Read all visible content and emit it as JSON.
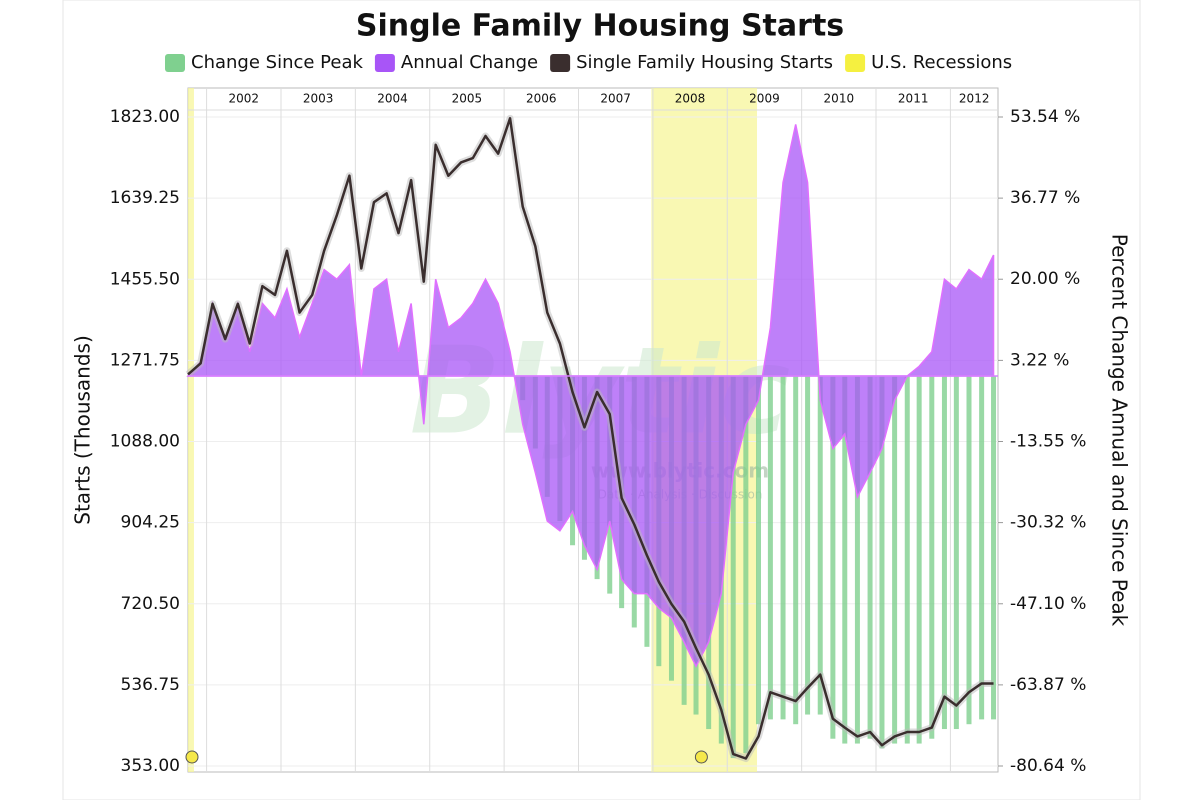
{
  "chart_data": {
    "type": "combo",
    "title": "Single Family Housing Starts",
    "y_label": "Starts (Thousands)",
    "y2_label": "Percent Change Annual and Since Peak",
    "watermark": [
      "Blytic",
      "www.blytic.com",
      "Data · Analysis · Discussion"
    ],
    "x": [
      2001.75,
      2001.92,
      2002.08,
      2002.25,
      2002.42,
      2002.58,
      2002.75,
      2002.92,
      2003.08,
      2003.25,
      2003.42,
      2003.58,
      2003.75,
      2003.92,
      2004.08,
      2004.25,
      2004.42,
      2004.58,
      2004.75,
      2004.92,
      2005.08,
      2005.25,
      2005.42,
      2005.58,
      2005.75,
      2005.92,
      2006.08,
      2006.25,
      2006.42,
      2006.58,
      2006.75,
      2006.92,
      2007.08,
      2007.25,
      2007.42,
      2007.58,
      2007.75,
      2007.92,
      2008.08,
      2008.25,
      2008.42,
      2008.58,
      2008.75,
      2008.92,
      2009.08,
      2009.25,
      2009.42,
      2009.58,
      2009.75,
      2009.92,
      2010.08,
      2010.25,
      2010.42,
      2010.58,
      2010.75,
      2010.92,
      2011.08,
      2011.25,
      2011.42,
      2011.58,
      2011.75,
      2011.92,
      2012.08,
      2012.25,
      2012.42,
      2012.58
    ],
    "xlim": [
      2001.75,
      2012.64
    ],
    "xticks": [
      2002,
      2003,
      2004,
      2005,
      2006,
      2007,
      2008,
      2009,
      2010,
      2011,
      2012
    ],
    "ylim": [
      353,
      1823
    ],
    "yticks": [
      {
        "value": 1823,
        "label": "1823.00"
      },
      {
        "value": 1639.25,
        "label": "1639.25"
      },
      {
        "value": 1455.5,
        "label": "1455.50"
      },
      {
        "value": 1271.75,
        "label": "1271.75"
      },
      {
        "value": 1088,
        "label": "1088.00"
      },
      {
        "value": 904.25,
        "label": "904.25"
      },
      {
        "value": 720.5,
        "label": "720.50"
      },
      {
        "value": 536.75,
        "label": "536.75"
      },
      {
        "value": 353,
        "label": "353.00"
      }
    ],
    "y2lim": [
      -80.64,
      53.54
    ],
    "y2ticks": [
      {
        "value": 53.54,
        "label": "53.54 %"
      },
      {
        "value": 36.77,
        "label": "36.77 %"
      },
      {
        "value": 20,
        "label": "20.00 %"
      },
      {
        "value": 3.22,
        "label": "3.22 %"
      },
      {
        "value": -13.55,
        "label": "-13.55 %"
      },
      {
        "value": -30.32,
        "label": "-30.32 %"
      },
      {
        "value": -47.1,
        "label": "-47.10 %"
      },
      {
        "value": -63.87,
        "label": "-63.87 %"
      },
      {
        "value": -80.64,
        "label": "-80.64 %"
      }
    ],
    "grid": true,
    "recessions": [
      [
        2001.75,
        2001.83
      ],
      [
        2007.98,
        2009.4
      ]
    ],
    "recession_name": "U.S. Recessions",
    "recession_color": "#f7f59a",
    "series": [
      {
        "name": "Change Since Peak",
        "type": "bar",
        "axis": "y2",
        "color": "#7fd08f",
        "values": [
          null,
          null,
          null,
          null,
          null,
          null,
          null,
          null,
          null,
          null,
          null,
          null,
          null,
          null,
          null,
          null,
          null,
          null,
          null,
          null,
          null,
          null,
          null,
          null,
          null,
          null,
          0,
          -5,
          -15,
          -25,
          -30,
          -35,
          -38,
          -42,
          -45,
          -48,
          -52,
          -56,
          -60,
          -63,
          -68,
          -70,
          -73,
          -76,
          -79,
          -78,
          -72,
          -71,
          -71,
          -72,
          -70,
          -70,
          -75,
          -76,
          -76,
          -75,
          -77,
          -76,
          -76,
          -76,
          -75,
          -73,
          -73,
          -72,
          -71,
          -71
        ]
      },
      {
        "name": "Annual Change",
        "type": "area",
        "axis": "y2",
        "color": "#a855f7",
        "values": [
          0,
          3,
          15,
          8,
          15,
          5,
          15,
          12,
          18,
          8,
          15,
          22,
          20,
          23,
          0,
          18,
          20,
          5,
          15,
          -10,
          20,
          10,
          12,
          15,
          20,
          15,
          5,
          -10,
          -20,
          -30,
          -32,
          -28,
          -35,
          -40,
          -30,
          -42,
          -45,
          -45,
          -48,
          -50,
          -55,
          -60,
          -55,
          -45,
          -20,
          -10,
          -5,
          10,
          40,
          52,
          40,
          -5,
          -15,
          -12,
          -25,
          -20,
          -15,
          -5,
          0,
          2,
          5,
          20,
          18,
          22,
          20,
          25
        ]
      },
      {
        "name": "Single Family Housing Starts",
        "type": "line",
        "axis": "y",
        "color": "#3a2e2e",
        "values": [
          1240,
          1265,
          1400,
          1320,
          1400,
          1310,
          1440,
          1420,
          1520,
          1380,
          1420,
          1520,
          1600,
          1690,
          1480,
          1630,
          1650,
          1560,
          1680,
          1450,
          1760,
          1690,
          1720,
          1730,
          1780,
          1740,
          1820,
          1620,
          1530,
          1380,
          1310,
          1200,
          1120,
          1200,
          1150,
          960,
          900,
          830,
          770,
          720,
          680,
          620,
          560,
          480,
          380,
          370,
          420,
          520,
          510,
          500,
          530,
          560,
          460,
          440,
          420,
          430,
          400,
          420,
          430,
          430,
          440,
          510,
          490,
          520,
          540,
          540
        ]
      }
    ]
  }
}
